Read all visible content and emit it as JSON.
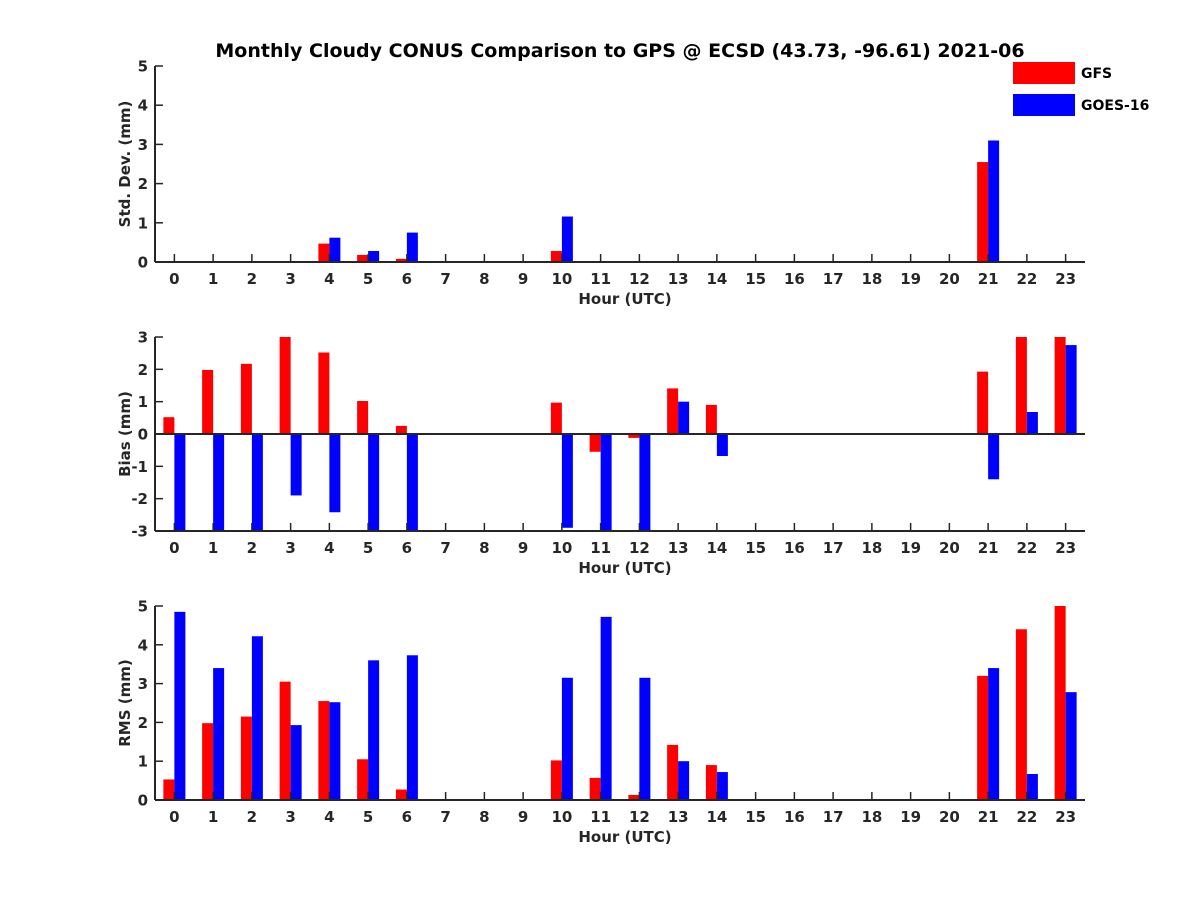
{
  "title": "Monthly Cloudy CONUS Comparison to GPS @ ECSD (43.73, -96.61) 2021-06",
  "legend": [
    {
      "name": "GFS",
      "color": "#ff0000"
    },
    {
      "name": "GOES-16",
      "color": "#0000ff"
    }
  ],
  "chart_data": [
    {
      "type": "bar",
      "ylabel": "Std. Dev. (mm)",
      "xlabel": "Hour (UTC)",
      "ylim": [
        0,
        5
      ],
      "yticks": [
        "0",
        "1",
        "2",
        "3",
        "4",
        "5"
      ],
      "categories": [
        "0",
        "1",
        "2",
        "3",
        "4",
        "5",
        "6",
        "7",
        "8",
        "9",
        "10",
        "11",
        "12",
        "13",
        "14",
        "15",
        "16",
        "17",
        "18",
        "19",
        "20",
        "21",
        "22",
        "23"
      ],
      "series": [
        {
          "name": "GFS",
          "values": [
            0,
            0,
            0,
            0,
            0.47,
            0.18,
            0.08,
            0,
            0,
            0,
            0.28,
            0,
            0,
            0,
            0,
            0,
            0,
            0,
            0,
            0,
            0,
            2.55,
            0,
            0
          ]
        },
        {
          "name": "GOES-16",
          "values": [
            0,
            0,
            0,
            0,
            0.62,
            0.28,
            0.75,
            0,
            0,
            0,
            1.16,
            0,
            0,
            0,
            0,
            0,
            0,
            0,
            0,
            0,
            0,
            3.1,
            0,
            0
          ]
        }
      ]
    },
    {
      "type": "bar",
      "ylabel": "Bias (mm)",
      "xlabel": "Hour (UTC)",
      "ylim": [
        -3,
        3
      ],
      "yticks": [
        "-3",
        "-2",
        "-1",
        "0",
        "1",
        "2",
        "3"
      ],
      "categories": [
        "0",
        "1",
        "2",
        "3",
        "4",
        "5",
        "6",
        "7",
        "8",
        "9",
        "10",
        "11",
        "12",
        "13",
        "14",
        "15",
        "16",
        "17",
        "18",
        "19",
        "20",
        "21",
        "22",
        "23"
      ],
      "series": [
        {
          "name": "GFS",
          "values": [
            0.52,
            1.98,
            2.17,
            3.0,
            2.52,
            1.02,
            0.25,
            0,
            0,
            0,
            0.97,
            -0.55,
            -0.12,
            1.41,
            0.9,
            0,
            0,
            0,
            0,
            0,
            0,
            1.93,
            3.0,
            3.0
          ]
        },
        {
          "name": "GOES-16",
          "values": [
            -3.0,
            -3.0,
            -3.0,
            -1.9,
            -2.42,
            -3.0,
            -3.0,
            0,
            0,
            0,
            -2.9,
            -3.0,
            -3.0,
            1.0,
            -0.68,
            0,
            0,
            0,
            0,
            0,
            0,
            -1.4,
            0.68,
            2.75
          ]
        }
      ]
    },
    {
      "type": "bar",
      "ylabel": "RMS (mm)",
      "xlabel": "Hour (UTC)",
      "ylim": [
        0,
        5
      ],
      "yticks": [
        "0",
        "1",
        "2",
        "3",
        "4",
        "5"
      ],
      "categories": [
        "0",
        "1",
        "2",
        "3",
        "4",
        "5",
        "6",
        "7",
        "8",
        "9",
        "10",
        "11",
        "12",
        "13",
        "14",
        "15",
        "16",
        "17",
        "18",
        "19",
        "20",
        "21",
        "22",
        "23"
      ],
      "series": [
        {
          "name": "GFS",
          "values": [
            0.53,
            1.98,
            2.15,
            3.05,
            2.55,
            1.05,
            0.27,
            0,
            0,
            0,
            1.02,
            0.57,
            0.13,
            1.42,
            0.9,
            0,
            0,
            0,
            0,
            0,
            0,
            3.2,
            4.4,
            5.0
          ]
        },
        {
          "name": "GOES-16",
          "values": [
            4.85,
            3.4,
            4.22,
            1.93,
            2.52,
            3.6,
            3.73,
            0,
            0,
            0,
            3.15,
            4.72,
            3.15,
            1.0,
            0.72,
            0,
            0,
            0,
            0,
            0,
            0,
            3.4,
            0.67,
            2.78
          ]
        }
      ]
    }
  ]
}
